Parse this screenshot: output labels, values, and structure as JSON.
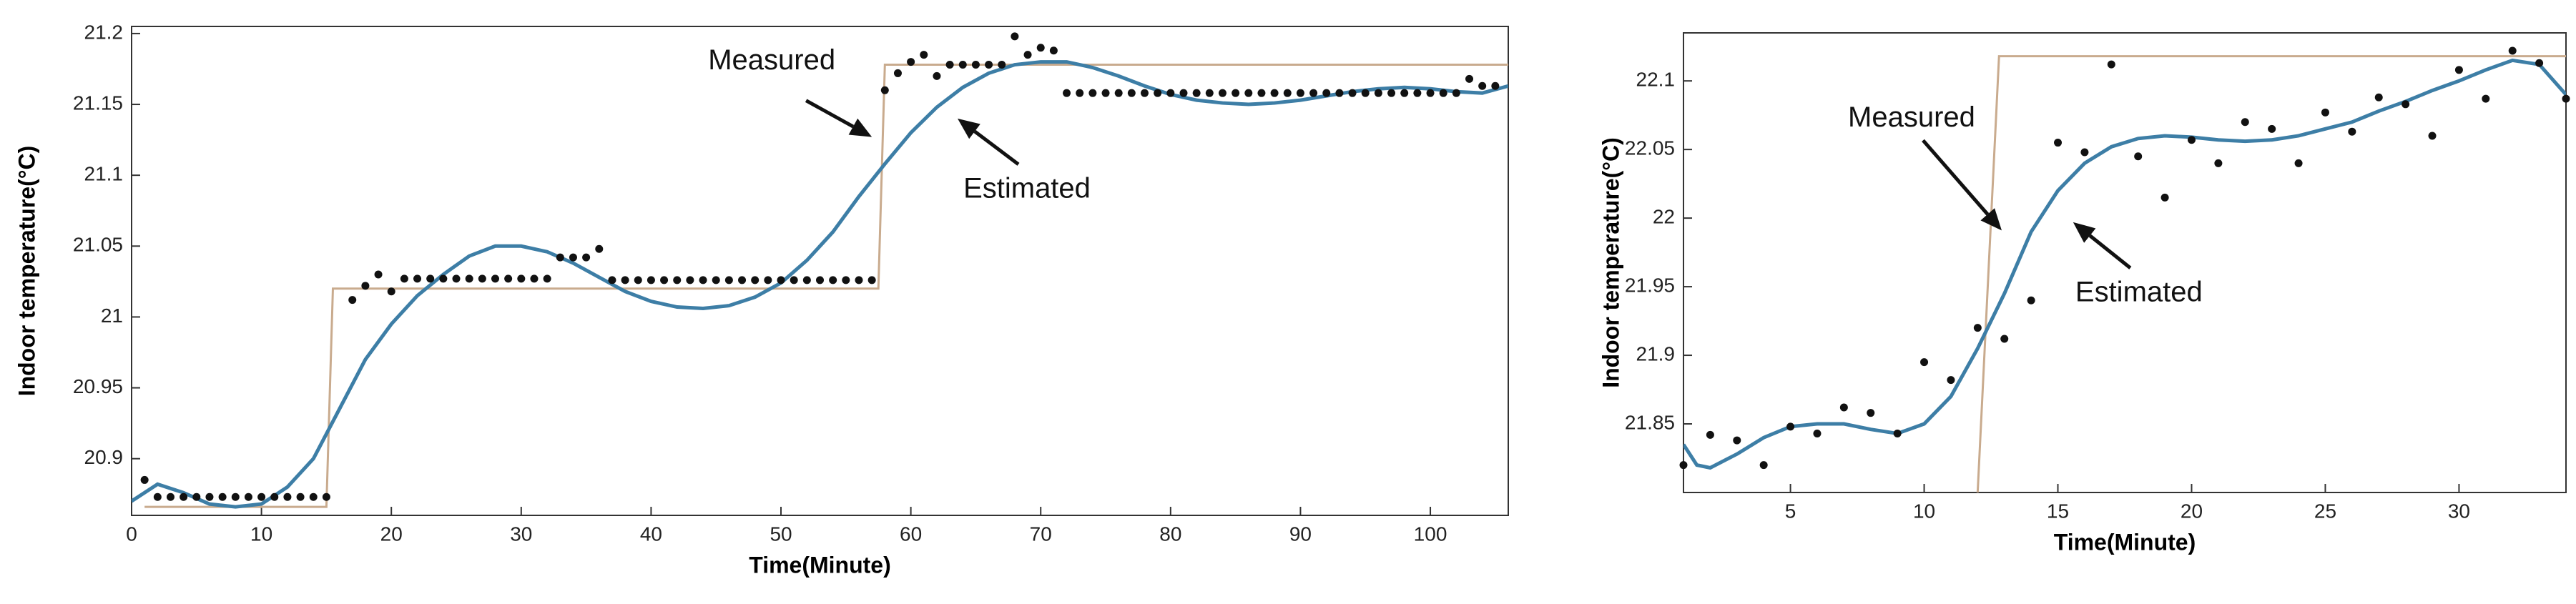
{
  "chart_data": [
    {
      "type": "line",
      "xlabel": "Time(Minute)",
      "ylabel": "Indoor temperature(°C)",
      "xlim": [
        0,
        106
      ],
      "ylim": [
        20.86,
        21.205
      ],
      "xticks": [
        0,
        10,
        20,
        30,
        40,
        50,
        60,
        70,
        80,
        90,
        100
      ],
      "yticks": [
        20.9,
        20.95,
        21,
        21.05,
        21.1,
        21.15,
        21.2
      ],
      "grid": false,
      "series": [
        {
          "style": "line",
          "color": "#c9ab8e",
          "x": [
            1,
            15,
            15.5,
            57.5,
            58,
            106
          ],
          "values": [
            20.866,
            20.866,
            21.02,
            21.02,
            21.178,
            21.178
          ]
        },
        {
          "style": "line",
          "color": "#3d7ea6",
          "x": [
            0,
            2,
            4,
            6,
            8,
            10,
            12,
            14,
            16,
            18,
            20,
            22,
            24,
            26,
            28,
            30,
            32,
            34,
            36,
            38,
            40,
            42,
            44,
            46,
            48,
            50,
            52,
            54,
            56,
            58,
            60,
            62,
            64,
            66,
            68,
            70,
            72,
            74,
            76,
            78,
            80,
            82,
            84,
            86,
            88,
            90,
            92,
            94,
            96,
            98,
            100,
            102,
            104,
            106
          ],
          "values": [
            20.87,
            20.882,
            20.876,
            20.868,
            20.866,
            20.868,
            20.88,
            20.9,
            20.935,
            20.97,
            20.995,
            21.015,
            21.03,
            21.043,
            21.05,
            21.05,
            21.046,
            21.038,
            21.028,
            21.018,
            21.011,
            21.007,
            21.006,
            21.008,
            21.014,
            21.024,
            21.04,
            21.06,
            21.085,
            21.108,
            21.13,
            21.148,
            21.162,
            21.172,
            21.178,
            21.18,
            21.18,
            21.176,
            21.17,
            21.163,
            21.157,
            21.153,
            21.151,
            21.15,
            21.151,
            21.153,
            21.156,
            21.159,
            21.161,
            21.162,
            21.161,
            21.159,
            21.158,
            21.163
          ]
        },
        {
          "style": "points",
          "color": "#111111",
          "x": [
            1,
            2,
            3,
            4,
            5,
            6,
            7,
            8,
            9,
            10,
            11,
            12,
            13,
            14,
            15,
            17,
            18,
            19,
            20,
            21,
            22,
            23,
            24,
            25,
            26,
            27,
            28,
            29,
            30,
            31,
            32,
            33,
            34,
            35,
            36,
            37,
            38,
            39,
            40,
            41,
            42,
            43,
            44,
            45,
            46,
            47,
            48,
            49,
            50,
            51,
            52,
            53,
            54,
            55,
            56,
            57,
            58,
            59,
            60,
            61,
            62,
            63,
            64,
            65,
            66,
            67,
            68,
            69,
            70,
            71,
            72,
            73,
            74,
            75,
            76,
            77,
            78,
            79,
            80,
            81,
            82,
            83,
            84,
            85,
            86,
            87,
            88,
            89,
            90,
            91,
            92,
            93,
            94,
            95,
            96,
            97,
            98,
            99,
            100,
            101,
            102,
            103,
            104,
            105
          ],
          "values": [
            20.885,
            20.873,
            20.873,
            20.873,
            20.873,
            20.873,
            20.873,
            20.873,
            20.873,
            20.873,
            20.873,
            20.873,
            20.873,
            20.873,
            20.873,
            21.012,
            21.022,
            21.03,
            21.018,
            21.027,
            21.027,
            21.027,
            21.027,
            21.027,
            21.027,
            21.027,
            21.027,
            21.027,
            21.027,
            21.027,
            21.027,
            21.042,
            21.042,
            21.042,
            21.048,
            21.026,
            21.026,
            21.026,
            21.026,
            21.026,
            21.026,
            21.026,
            21.026,
            21.026,
            21.026,
            21.026,
            21.026,
            21.026,
            21.026,
            21.026,
            21.026,
            21.026,
            21.026,
            21.026,
            21.026,
            21.026,
            21.16,
            21.172,
            21.18,
            21.185,
            21.17,
            21.178,
            21.178,
            21.178,
            21.178,
            21.178,
            21.198,
            21.185,
            21.19,
            21.188,
            21.158,
            21.158,
            21.158,
            21.158,
            21.158,
            21.158,
            21.158,
            21.158,
            21.158,
            21.158,
            21.158,
            21.158,
            21.158,
            21.158,
            21.158,
            21.158,
            21.158,
            21.158,
            21.158,
            21.158,
            21.158,
            21.158,
            21.158,
            21.158,
            21.158,
            21.158,
            21.158,
            21.158,
            21.158,
            21.158,
            21.158,
            21.168,
            21.163,
            21.163
          ]
        }
      ],
      "annotations": [
        {
          "text": "Measured",
          "x": 57,
          "y": 21.127
        },
        {
          "text": "Estimated",
          "x": 63.6,
          "y": 21.14
        }
      ]
    },
    {
      "type": "line",
      "xlabel": "Time(Minute)",
      "ylabel": "Indoor temperature(°C)",
      "xlim": [
        1,
        34
      ],
      "ylim": [
        21.8,
        22.135
      ],
      "xticks": [
        5,
        10,
        15,
        20,
        25,
        30
      ],
      "yticks": [
        21.85,
        21.9,
        21.95,
        22,
        22.05,
        22.1
      ],
      "grid": false,
      "series": [
        {
          "style": "line",
          "color": "#c9ab8e",
          "x": [
            12,
            12.8,
            34
          ],
          "values": [
            21.8,
            22.118,
            22.118
          ]
        },
        {
          "style": "line",
          "color": "#3d7ea6",
          "x": [
            1,
            1.5,
            2,
            3,
            4,
            5,
            6,
            7,
            8,
            9,
            10,
            11,
            12,
            13,
            14,
            15,
            16,
            17,
            18,
            19,
            20,
            21,
            22,
            23,
            24,
            25,
            26,
            27,
            28,
            29,
            30,
            31,
            32,
            33,
            34
          ],
          "values": [
            21.835,
            21.82,
            21.818,
            21.828,
            21.84,
            21.848,
            21.85,
            21.85,
            21.846,
            21.843,
            21.85,
            21.87,
            21.905,
            21.945,
            21.99,
            22.02,
            22.04,
            22.052,
            22.058,
            22.06,
            22.059,
            22.057,
            22.056,
            22.057,
            22.06,
            22.065,
            22.07,
            22.078,
            22.085,
            22.093,
            22.1,
            22.108,
            22.115,
            22.112,
            22.09
          ]
        },
        {
          "style": "points",
          "color": "#111111",
          "x": [
            1,
            2,
            3,
            4,
            5,
            6,
            7,
            8,
            9,
            10,
            11,
            12,
            13,
            14,
            15,
            16,
            17,
            18,
            19,
            20,
            21,
            22,
            23,
            24,
            25,
            26,
            27,
            28,
            29,
            30,
            31,
            32,
            33,
            34
          ],
          "values": [
            21.82,
            21.842,
            21.838,
            21.82,
            21.848,
            21.843,
            21.862,
            21.858,
            21.843,
            21.895,
            21.882,
            21.92,
            21.912,
            21.94,
            22.055,
            22.048,
            22.112,
            22.045,
            22.015,
            22.057,
            22.04,
            22.07,
            22.065,
            22.04,
            22.077,
            22.063,
            22.088,
            22.083,
            22.06,
            22.108,
            22.087,
            22.122,
            22.113,
            22.087
          ]
        }
      ],
      "annotations": [
        {
          "text": "Measured",
          "x": 12.9,
          "y": 21.991
        },
        {
          "text": "Estimated",
          "x": 15.57,
          "y": 21.997
        }
      ]
    }
  ]
}
